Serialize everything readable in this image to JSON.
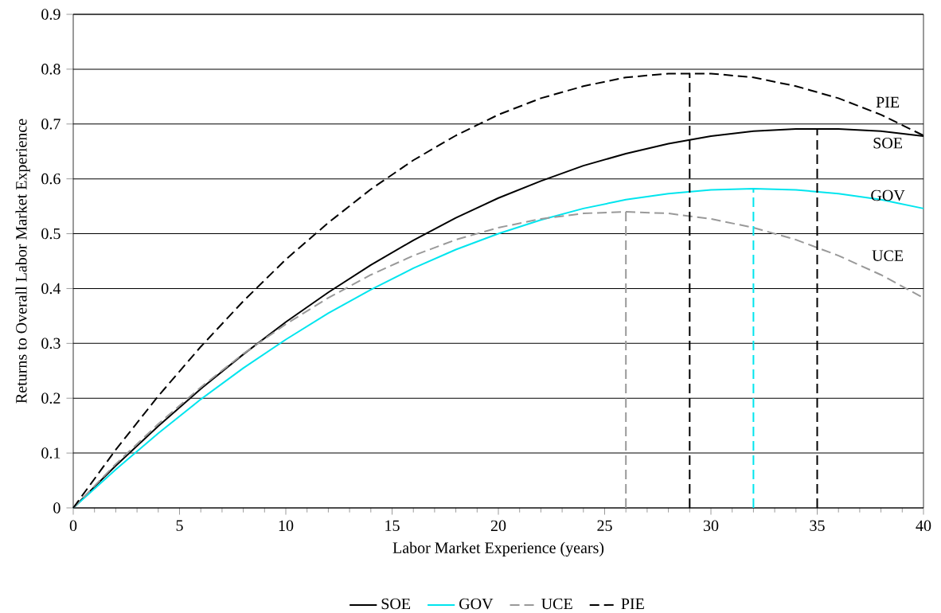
{
  "chart_data": {
    "type": "line",
    "xlabel": "Labor Market Experience (years)",
    "ylabel": "Returns to Overall Labor Market Experience",
    "x": [
      0,
      2,
      4,
      6,
      8,
      10,
      12,
      14,
      16,
      18,
      20,
      22,
      24,
      26,
      28,
      30,
      32,
      34,
      36,
      38,
      40
    ],
    "series": [
      {
        "name": "SOE",
        "color": "#000000",
        "line_style": "solid",
        "values": [
          0,
          0.077,
          0.149,
          0.217,
          0.28,
          0.339,
          0.393,
          0.443,
          0.488,
          0.529,
          0.565,
          0.596,
          0.624,
          0.646,
          0.664,
          0.678,
          0.687,
          0.691,
          0.691,
          0.687,
          0.678
        ]
      },
      {
        "name": "GOV",
        "color": "#00e5ee",
        "line_style": "solid",
        "values": [
          0,
          0.07,
          0.136,
          0.198,
          0.255,
          0.307,
          0.355,
          0.398,
          0.437,
          0.471,
          0.5,
          0.525,
          0.546,
          0.562,
          0.573,
          0.58,
          0.582,
          0.58,
          0.573,
          0.562,
          0.546
        ]
      },
      {
        "name": "UCE",
        "color": "#999999",
        "line_style": "dashed",
        "values": [
          0,
          0.08,
          0.153,
          0.22,
          0.281,
          0.335,
          0.383,
          0.425,
          0.46,
          0.489,
          0.511,
          0.527,
          0.537,
          0.54,
          0.537,
          0.527,
          0.511,
          0.489,
          0.46,
          0.425,
          0.383
        ]
      },
      {
        "name": "PIE",
        "color": "#000000",
        "line_style": "dashed",
        "values": [
          0,
          0.106,
          0.204,
          0.294,
          0.377,
          0.453,
          0.52,
          0.581,
          0.634,
          0.679,
          0.717,
          0.747,
          0.769,
          0.785,
          0.792,
          0.792,
          0.785,
          0.769,
          0.747,
          0.717,
          0.679
        ]
      },
      {
        "color": "#999999",
        "line_style": "dashed",
        "x": [
          26,
          26
        ],
        "values": [
          0,
          0.54
        ]
      },
      {
        "color": "#000000",
        "line_style": "dashed",
        "x": [
          29,
          29
        ],
        "values": [
          0,
          0.793
        ]
      },
      {
        "color": "#00e5ee",
        "line_style": "dashed",
        "x": [
          32,
          32
        ],
        "values": [
          0,
          0.582
        ]
      },
      {
        "color": "#000000",
        "line_style": "dashed",
        "x": [
          35,
          35
        ],
        "values": [
          0,
          0.691
        ]
      }
    ],
    "xlim": [
      0,
      40
    ],
    "xticks": [
      0,
      5,
      10,
      15,
      20,
      25,
      30,
      35,
      40
    ],
    "ylim": [
      0,
      0.9
    ],
    "yticks": [
      0,
      0.1,
      0.2,
      0.3,
      0.4,
      0.5,
      0.6,
      0.7,
      0.8,
      0.9
    ],
    "grid": "y",
    "legend": "bottom",
    "marker": "none",
    "annotations": [
      "PIE",
      "SOE",
      "GOV",
      "UCE"
    ]
  }
}
